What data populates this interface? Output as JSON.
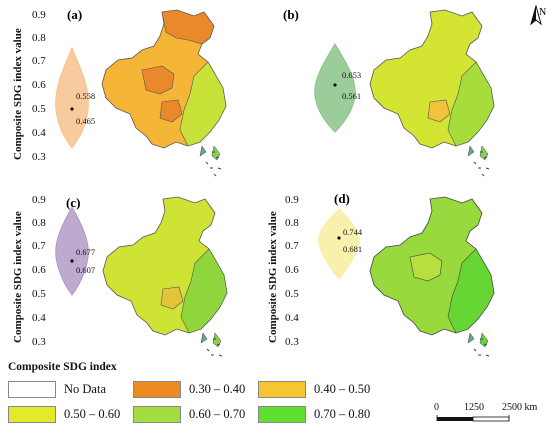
{
  "y_axis_label": "Composite SDG index value",
  "y_ticks": [
    "0.9",
    "0.8",
    "0.7",
    "0.6",
    "0.5",
    "0.4",
    "0.3"
  ],
  "panels": [
    {
      "id": "a",
      "letter": "(a)",
      "violin_upper": "0.558",
      "violin_lower": "0.465",
      "violin_color": "#f7c28e",
      "map_base": "#f5b637",
      "map_accent": "#e9892c",
      "map_east": "#c8e23a"
    },
    {
      "id": "b",
      "letter": "(b)",
      "violin_upper": "0.653",
      "violin_lower": "0.561",
      "violin_color": "#8cc38a",
      "map_base": "#d3e433",
      "map_accent": "#f0c33a",
      "map_east": "#a6dc3c"
    },
    {
      "id": "c",
      "letter": "(c)",
      "violin_upper": "0.677",
      "violin_lower": "0.607",
      "violin_color": "#b39ac7",
      "map_base": "#cfe335",
      "map_accent": "#e3c53a",
      "map_east": "#8fd63c"
    },
    {
      "id": "d",
      "letter": "(d)",
      "violin_upper": "0.744",
      "violin_lower": "0.681",
      "violin_color": "#f7efa0",
      "map_base": "#98d93d",
      "map_accent": "#b8df3c",
      "map_east": "#66d634"
    }
  ],
  "north_label": "N",
  "legend": {
    "title": "Composite SDG index",
    "items": [
      {
        "label": "No Data",
        "color": "#ffffff"
      },
      {
        "label": "0.30 – 0.40",
        "color": "#ef8a22"
      },
      {
        "label": "0.40 – 0.50",
        "color": "#f6c531"
      },
      {
        "label": "0.50 – 0.60",
        "color": "#e4ea2b"
      },
      {
        "label": "0.60 – 0.70",
        "color": "#a5dc3f"
      },
      {
        "label": "0.70 – 0.80",
        "color": "#5fe030"
      }
    ]
  },
  "scale_bar": {
    "label_0": "0",
    "label_mid": "1250",
    "label_end": "2500 km"
  }
}
